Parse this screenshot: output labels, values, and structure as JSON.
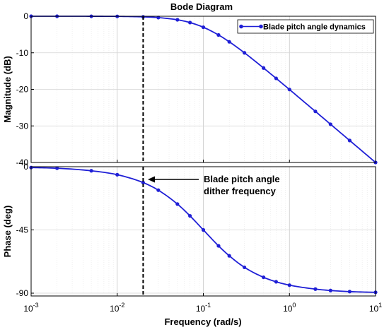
{
  "chart_data": {
    "type": "line",
    "title": "Bode Diagram",
    "xlabel": "Frequency  (rad/s)",
    "xscale": "log",
    "xlim": [
      0.001,
      10
    ],
    "x_ticks": [
      0.001,
      0.01,
      0.1,
      1,
      10
    ],
    "x_tick_labels": [
      [
        "10",
        "-3"
      ],
      [
        "10",
        "-2"
      ],
      [
        "10",
        "-1"
      ],
      [
        "10",
        "0"
      ],
      [
        "10",
        "1"
      ]
    ],
    "grid": true,
    "line_color": "#1f1fd6",
    "panels": [
      {
        "ylabel": "Magnitude (dB)",
        "ylim": [
          -40,
          0
        ],
        "y_ticks": [
          0,
          -10,
          -20,
          -30,
          -40
        ],
        "y_tick_labels": [
          "0",
          "-10",
          "-20",
          "-30",
          "-40"
        ]
      },
      {
        "ylabel": "Phase (deg)",
        "ylim": [
          -92,
          0
        ],
        "y_ticks": [
          0,
          -45,
          -90
        ],
        "y_tick_labels": [
          "0",
          "-45",
          "-90"
        ]
      }
    ],
    "series": [
      {
        "name": "Blade pitch angle dynamics",
        "marker": "circle",
        "x": [
          0.001,
          0.002,
          0.005,
          0.01,
          0.02,
          0.03,
          0.05,
          0.07,
          0.1,
          0.15,
          0.2,
          0.3,
          0.5,
          0.7,
          1,
          2,
          3,
          5,
          10
        ],
        "magnitude_db": [
          0,
          0,
          -0.01,
          -0.04,
          -0.17,
          -0.37,
          -0.97,
          -1.73,
          -3.01,
          -5.12,
          -6.99,
          -10.0,
          -14.15,
          -16.99,
          -20.04,
          -26.03,
          -29.55,
          -33.98,
          -40.0
        ],
        "phase_deg": [
          -0.6,
          -1.1,
          -2.9,
          -5.7,
          -11.3,
          -16.7,
          -26.6,
          -35.0,
          -45.0,
          -56.3,
          -63.4,
          -71.6,
          -78.7,
          -81.9,
          -84.3,
          -87.1,
          -88.1,
          -88.9,
          -89.4
        ]
      }
    ],
    "vline_x": 0.02,
    "annotation": [
      "Blade pitch angle",
      "dither frequency"
    ]
  }
}
